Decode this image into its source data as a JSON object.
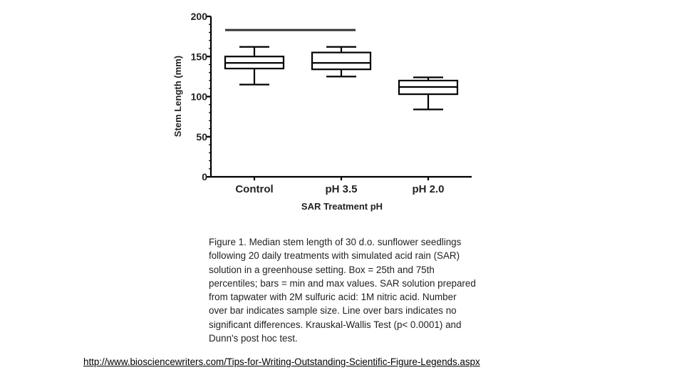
{
  "chart_data": {
    "type": "box",
    "categories": [
      "Control",
      "pH 3.5",
      "pH 2.0"
    ],
    "boxes": [
      {
        "category": "Control",
        "min": 115,
        "q1": 135,
        "median": 142,
        "q3": 150,
        "max": 162
      },
      {
        "category": "pH 3.5",
        "min": 125,
        "q1": 134,
        "median": 142,
        "q3": 155,
        "max": 162
      },
      {
        "category": "pH 2.0",
        "min": 84,
        "q1": 103,
        "median": 112,
        "q3": 120,
        "max": 124
      }
    ],
    "xlabel": "SAR Treatment pH",
    "ylabel": "Stem Length (mm)",
    "ylim": [
      0,
      200
    ],
    "yticks": [
      "0",
      "50",
      "100",
      "150",
      "200"
    ],
    "significance_line": {
      "value": 183,
      "from": "Control",
      "to": "pH 3.5"
    },
    "grid": false
  },
  "caption_lines": [
    "Figure 1. Median stem length of 30 d.o. sunflower seedlings",
    "following 20 daily treatments with simulated acid rain (SAR)",
    "solution in a greenhouse setting.   Box =  25th and 75th",
    "percentiles; bars = min and max values.  SAR solution prepared",
    "from  tapwater with 2M sulfuric acid: 1M nitric acid. Number",
    "over bar indicates sample size.  Line over bars indicates no",
    "significant differences.  Krauskal-Wallis Test (p< 0.0001) and",
    "Dunn's post hoc test."
  ],
  "source_link": "http://www.biosciencewriters.com/Tips-for-Writing-Outstanding-Scientific-Figure-Legends.aspx"
}
